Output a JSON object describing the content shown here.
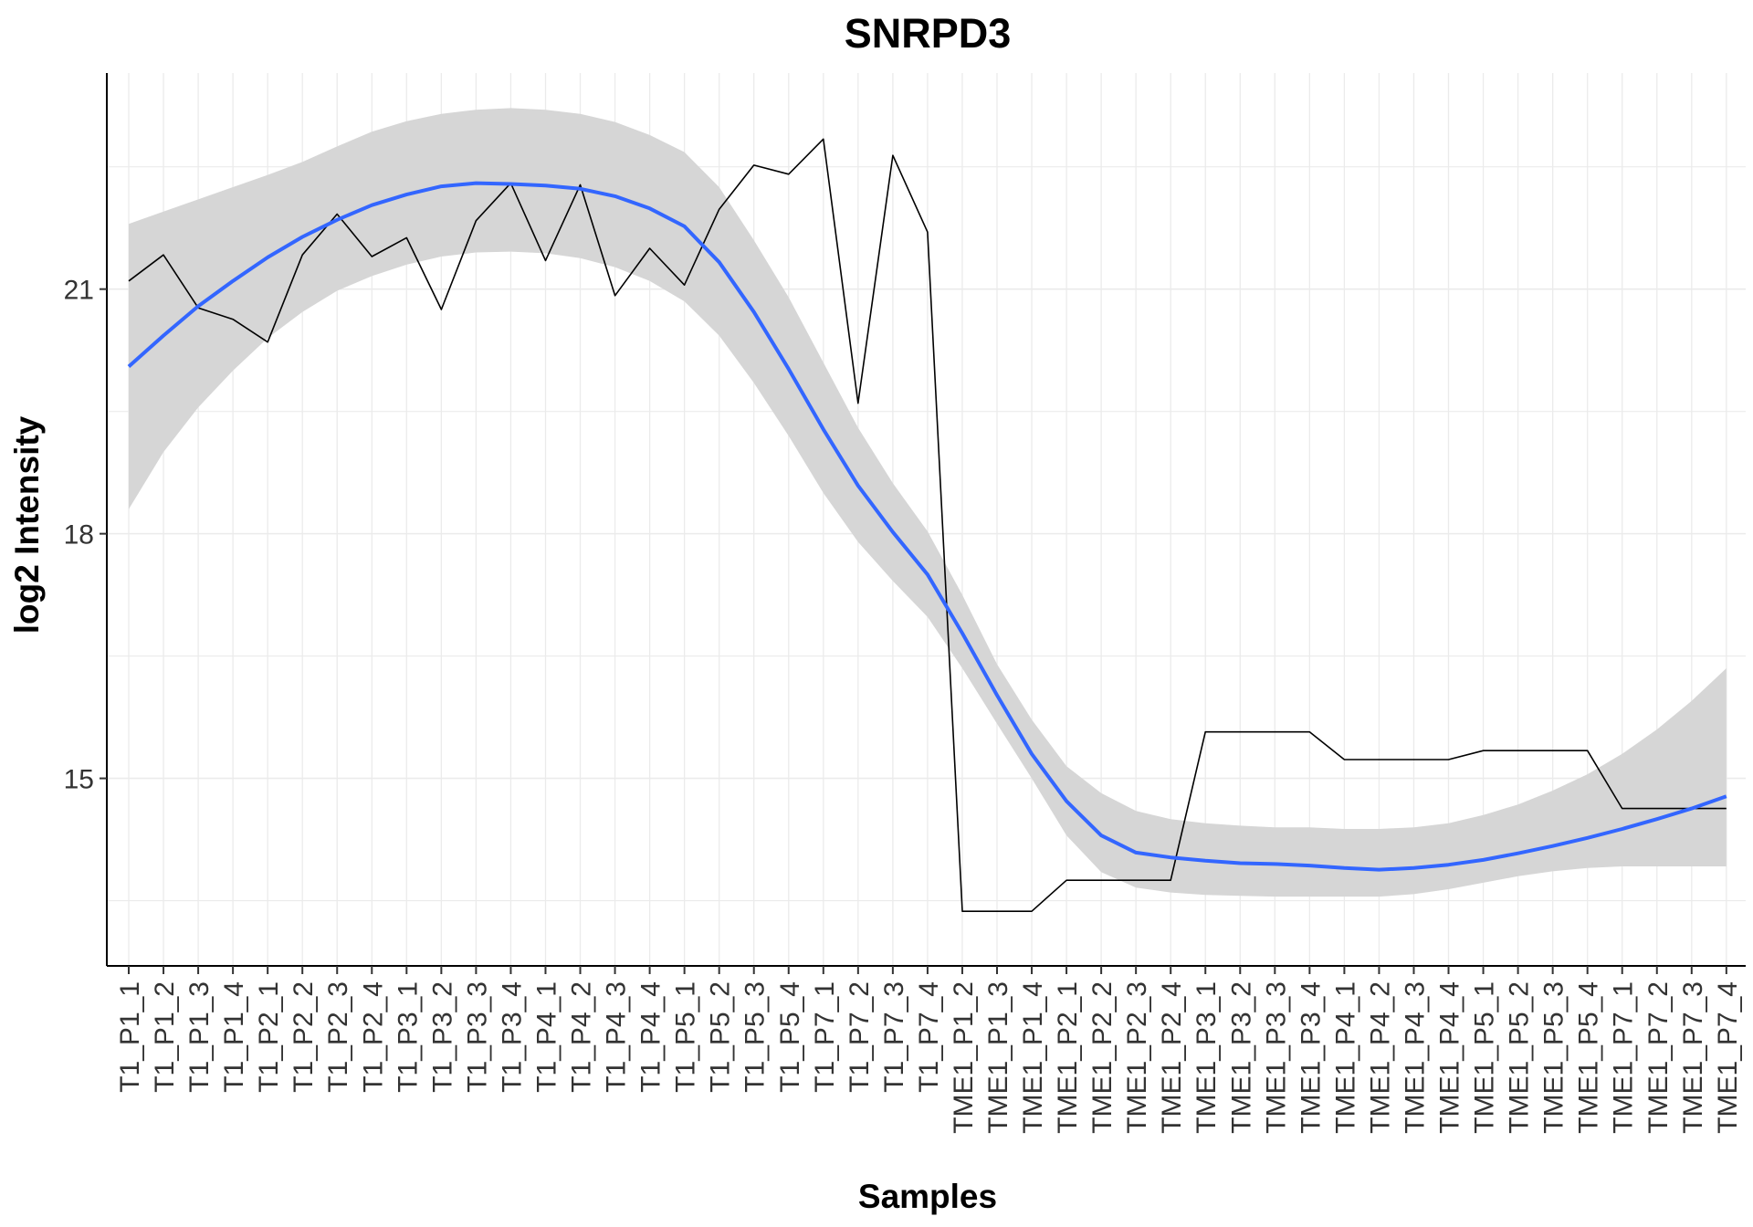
{
  "chart_data": {
    "type": "line",
    "title": "SNRPD3",
    "xlabel": "Samples",
    "ylabel": "log2 Intensity",
    "ylim": [
      12.7,
      23.65
    ],
    "yticks": [
      15,
      18,
      21
    ],
    "grid": true,
    "legend": "none",
    "categories": [
      "T1_P1_1",
      "T1_P1_2",
      "T1_P1_3",
      "T1_P1_4",
      "T1_P2_1",
      "T1_P2_2",
      "T1_P2_3",
      "T1_P2_4",
      "T1_P3_1",
      "T1_P3_2",
      "T1_P3_3",
      "T1_P3_4",
      "T1_P4_1",
      "T1_P4_2",
      "T1_P4_3",
      "T1_P4_4",
      "T1_P5_1",
      "T1_P5_2",
      "T1_P5_3",
      "T1_P5_4",
      "T1_P7_1",
      "T1_P7_2",
      "T1_P7_3",
      "T1_P7_4",
      "TME1_P1_2",
      "TME1_P1_3",
      "TME1_P1_4",
      "TME1_P2_1",
      "TME1_P2_2",
      "TME1_P2_3",
      "TME1_P2_4",
      "TME1_P3_1",
      "TME1_P3_2",
      "TME1_P3_3",
      "TME1_P3_4",
      "TME1_P4_1",
      "TME1_P4_2",
      "TME1_P4_3",
      "TME1_P4_4",
      "TME1_P5_1",
      "TME1_P5_2",
      "TME1_P5_3",
      "TME1_P5_4",
      "TME1_P7_1",
      "TME1_P7_2",
      "TME1_P7_3",
      "TME1_P7_4"
    ],
    "series": [
      {
        "kind": "observed",
        "color": "#000000",
        "values": [
          21.1,
          21.42,
          20.77,
          20.63,
          20.35,
          21.42,
          21.92,
          21.4,
          21.63,
          20.75,
          21.84,
          22.3,
          21.35,
          22.28,
          20.92,
          21.5,
          21.05,
          21.98,
          22.52,
          22.41,
          22.84,
          19.6,
          22.64,
          21.7,
          13.37,
          13.37,
          13.37,
          13.75,
          13.75,
          13.75,
          13.75,
          15.57,
          15.57,
          15.57,
          15.57,
          15.23,
          15.23,
          15.23,
          15.23,
          15.34,
          15.34,
          15.34,
          15.34,
          14.63,
          14.63,
          14.63,
          14.63
        ]
      },
      {
        "kind": "smooth",
        "color": "#3366FF",
        "values": [
          20.05,
          20.43,
          20.79,
          21.1,
          21.39,
          21.64,
          21.85,
          22.03,
          22.16,
          22.26,
          22.3,
          22.29,
          22.27,
          22.23,
          22.14,
          21.99,
          21.77,
          21.33,
          20.72,
          20.02,
          19.28,
          18.59,
          18.02,
          17.5,
          16.78,
          16.02,
          15.3,
          14.72,
          14.3,
          14.09,
          14.03,
          13.99,
          13.96,
          13.95,
          13.93,
          13.9,
          13.88,
          13.9,
          13.94,
          14.0,
          14.08,
          14.17,
          14.27,
          14.38,
          14.5,
          14.63,
          14.78
        ]
      }
    ],
    "confidence_band": {
      "color": "#d6d6d6",
      "lower": [
        18.3,
        19.0,
        19.55,
        20.0,
        20.4,
        20.72,
        20.98,
        21.16,
        21.3,
        21.4,
        21.45,
        21.46,
        21.44,
        21.38,
        21.27,
        21.1,
        20.85,
        20.43,
        19.85,
        19.2,
        18.5,
        17.9,
        17.42,
        16.98,
        16.35,
        15.67,
        15.0,
        14.3,
        13.85,
        13.66,
        13.6,
        13.57,
        13.56,
        13.55,
        13.55,
        13.55,
        13.55,
        13.58,
        13.64,
        13.72,
        13.8,
        13.86,
        13.9,
        13.92,
        13.92,
        13.92,
        13.92
      ],
      "upper": [
        21.8,
        21.95,
        22.1,
        22.25,
        22.4,
        22.56,
        22.75,
        22.93,
        23.06,
        23.15,
        23.2,
        23.22,
        23.2,
        23.15,
        23.05,
        22.89,
        22.68,
        22.25,
        21.6,
        20.9,
        20.1,
        19.3,
        18.62,
        18.03,
        17.25,
        16.4,
        15.72,
        15.15,
        14.82,
        14.6,
        14.5,
        14.45,
        14.42,
        14.4,
        14.4,
        14.38,
        14.38,
        14.4,
        14.45,
        14.55,
        14.68,
        14.85,
        15.05,
        15.3,
        15.6,
        15.95,
        16.35
      ]
    }
  }
}
